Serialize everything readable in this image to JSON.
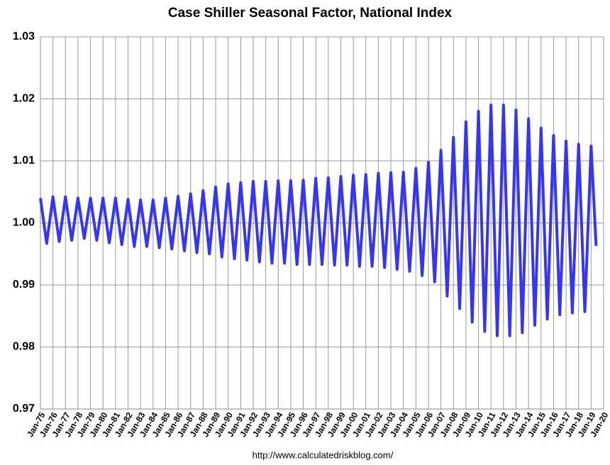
{
  "chart_data": {
    "type": "line",
    "title": "Case Shiller Seasonal Factor, National Index",
    "footer": "http://www.calculatedriskblog.com/",
    "x": [
      1975,
      1975.5,
      1976,
      1976.5,
      1977,
      1977.5,
      1978,
      1978.5,
      1979,
      1979.5,
      1980,
      1980.5,
      1981,
      1981.5,
      1982,
      1982.5,
      1983,
      1983.5,
      1984,
      1984.5,
      1985,
      1985.5,
      1986,
      1986.5,
      1987,
      1987.5,
      1988,
      1988.5,
      1989,
      1989.5,
      1990,
      1990.5,
      1991,
      1991.5,
      1992,
      1992.5,
      1993,
      1993.5,
      1994,
      1994.5,
      1995,
      1995.5,
      1996,
      1996.5,
      1997,
      1997.5,
      1998,
      1998.5,
      1999,
      1999.5,
      2000,
      2000.5,
      2001,
      2001.5,
      2002,
      2002.5,
      2003,
      2003.5,
      2004,
      2004.5,
      2005,
      2005.5,
      2006,
      2006.5,
      2007,
      2007.5,
      2008,
      2008.5,
      2009,
      2009.5,
      2010,
      2010.5,
      2011,
      2011.5,
      2012,
      2012.5,
      2013,
      2013.5,
      2014,
      2014.5,
      2015,
      2015.5,
      2016,
      2016.5,
      2017,
      2017.5,
      2018,
      2018.5,
      2019,
      2019.4
    ],
    "series": [
      {
        "name": "Seasonal Factor",
        "color": "#3535f5",
        "values": [
          1.004,
          0.9967,
          1.0042,
          0.997,
          1.0042,
          0.9972,
          1.004,
          0.9975,
          1.004,
          0.9972,
          1.004,
          0.9968,
          1.004,
          0.9965,
          1.0038,
          0.9962,
          1.0037,
          0.9962,
          1.0037,
          0.996,
          1.004,
          0.9958,
          1.0043,
          0.9955,
          1.0047,
          0.9952,
          1.0052,
          0.995,
          1.0058,
          0.9945,
          1.0063,
          0.9942,
          1.0065,
          0.994,
          1.0067,
          0.9937,
          1.0067,
          0.9935,
          1.0068,
          0.9935,
          1.0068,
          0.9933,
          1.0069,
          0.9933,
          1.0072,
          0.9933,
          1.0073,
          0.9932,
          1.0075,
          0.9932,
          1.0077,
          0.993,
          1.0078,
          0.993,
          1.008,
          0.9928,
          1.0081,
          0.9925,
          1.0082,
          0.9922,
          1.0088,
          0.9915,
          1.0098,
          0.9905,
          1.0117,
          0.9882,
          1.0138,
          0.9862,
          1.0163,
          0.984,
          1.018,
          0.9825,
          1.019,
          0.9818,
          1.019,
          0.9818,
          1.0182,
          0.9823,
          1.0168,
          0.9835,
          1.0153,
          0.9845,
          1.0141,
          0.9852,
          1.0132,
          0.9855,
          1.0127,
          0.9857,
          1.0124,
          0.9963
        ]
      }
    ],
    "xlim": [
      1975,
      2020
    ],
    "xticks": [
      {
        "value": 1975,
        "label": "Jan-75"
      },
      {
        "value": 1976,
        "label": "Jan-76"
      },
      {
        "value": 1977,
        "label": "Jan-77"
      },
      {
        "value": 1978,
        "label": "Jan-78"
      },
      {
        "value": 1979,
        "label": "Jan-79"
      },
      {
        "value": 1980,
        "label": "Jan-80"
      },
      {
        "value": 1981,
        "label": "Jan-81"
      },
      {
        "value": 1982,
        "label": "Jan-82"
      },
      {
        "value": 1983,
        "label": "Jan-83"
      },
      {
        "value": 1984,
        "label": "Jan-84"
      },
      {
        "value": 1985,
        "label": "Jan-85"
      },
      {
        "value": 1986,
        "label": "Jan-86"
      },
      {
        "value": 1987,
        "label": "Jan-87"
      },
      {
        "value": 1988,
        "label": "Jan-88"
      },
      {
        "value": 1989,
        "label": "Jan-89"
      },
      {
        "value": 1990,
        "label": "Jan-90"
      },
      {
        "value": 1991,
        "label": "Jan-91"
      },
      {
        "value": 1992,
        "label": "Jan-92"
      },
      {
        "value": 1993,
        "label": "Jan-93"
      },
      {
        "value": 1994,
        "label": "Jan-94"
      },
      {
        "value": 1995,
        "label": "Jan-95"
      },
      {
        "value": 1996,
        "label": "Jan-96"
      },
      {
        "value": 1997,
        "label": "Jan-97"
      },
      {
        "value": 1998,
        "label": "Jan-98"
      },
      {
        "value": 1999,
        "label": "Jan-99"
      },
      {
        "value": 2000,
        "label": "Jan-00"
      },
      {
        "value": 2001,
        "label": "Jan-01"
      },
      {
        "value": 2002,
        "label": "Jan-02"
      },
      {
        "value": 2003,
        "label": "Jan-03"
      },
      {
        "value": 2004,
        "label": "Jan-04"
      },
      {
        "value": 2005,
        "label": "Jan-05"
      },
      {
        "value": 2006,
        "label": "Jan-06"
      },
      {
        "value": 2007,
        "label": "Jan-07"
      },
      {
        "value": 2008,
        "label": "Jan-08"
      },
      {
        "value": 2009,
        "label": "Jan-09"
      },
      {
        "value": 2010,
        "label": "Jan-10"
      },
      {
        "value": 2011,
        "label": "Jan-11"
      },
      {
        "value": 2012,
        "label": "Jan-12"
      },
      {
        "value": 2013,
        "label": "Jan-13"
      },
      {
        "value": 2014,
        "label": "Jan-14"
      },
      {
        "value": 2015,
        "label": "Jan-15"
      },
      {
        "value": 2016,
        "label": "Jan-16"
      },
      {
        "value": 2017,
        "label": "Jan-17"
      },
      {
        "value": 2018,
        "label": "Jan-18"
      },
      {
        "value": 2019,
        "label": "Jan-19"
      },
      {
        "value": 2020,
        "label": "Jan-20"
      }
    ],
    "ylim": [
      0.97,
      1.03
    ],
    "yticks": [
      0.97,
      0.98,
      0.99,
      {
        "value": 1,
        "label": "1.00"
      },
      1.01,
      1.02,
      1.03
    ],
    "grid": true
  }
}
